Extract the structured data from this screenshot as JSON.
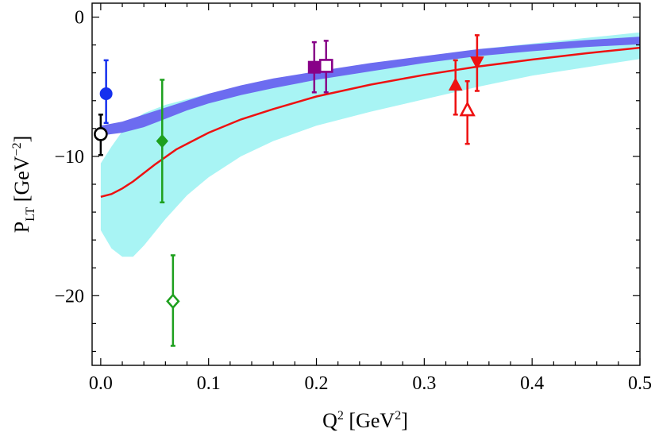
{
  "chart_data": {
    "type": "scatter",
    "title": "",
    "xlabel": {
      "main": "Q",
      "sup": "2",
      "unit_open": " [GeV",
      "unit_sup": "2",
      "unit_close": "]"
    },
    "ylabel": {
      "main": "P",
      "sub": "LT",
      "unit_open": " [GeV",
      "unit_sup": "−2",
      "unit_close": "]"
    },
    "xlim": [
      -0.008,
      0.5
    ],
    "ylim": [
      -25,
      1
    ],
    "x_ticks": [
      {
        "value": 0.0,
        "label": "0.0"
      },
      {
        "value": 0.1,
        "label": "0.1"
      },
      {
        "value": 0.2,
        "label": "0.2"
      },
      {
        "value": 0.3,
        "label": "0.3"
      },
      {
        "value": 0.4,
        "label": "0.4"
      },
      {
        "value": 0.5,
        "label": "0.5"
      }
    ],
    "y_ticks": [
      {
        "value": 0,
        "label": "0"
      },
      {
        "value": -10,
        "label": "−10"
      },
      {
        "value": -20,
        "label": "−20"
      }
    ],
    "bands": [
      {
        "name": "light-band",
        "color": "#a8f4f4",
        "x": [
          0.0,
          0.01,
          0.02,
          0.03,
          0.04,
          0.06,
          0.08,
          0.1,
          0.13,
          0.16,
          0.2,
          0.25,
          0.3,
          0.35,
          0.4,
          0.45,
          0.5
        ],
        "upper": [
          -10.5,
          -9.3,
          -8.2,
          -7.4,
          -6.9,
          -6.3,
          -5.9,
          -5.5,
          -5.0,
          -4.6,
          -4.1,
          -3.5,
          -2.9,
          -2.3,
          -1.9,
          -1.5,
          -1.1
        ],
        "lower": [
          -15.3,
          -16.6,
          -17.2,
          -17.2,
          -16.4,
          -14.5,
          -12.8,
          -11.5,
          -10.0,
          -8.9,
          -7.8,
          -6.8,
          -5.9,
          -5.0,
          -4.2,
          -3.6,
          -3.0
        ]
      },
      {
        "name": "purple-band",
        "color": "#6c6cf0",
        "x": [
          0.0,
          0.02,
          0.04,
          0.06,
          0.08,
          0.1,
          0.13,
          0.16,
          0.2,
          0.25,
          0.3,
          0.35,
          0.4,
          0.45,
          0.5
        ],
        "upper": [
          -7.8,
          -7.5,
          -7.0,
          -6.5,
          -6.0,
          -5.5,
          -4.9,
          -4.4,
          -3.9,
          -3.3,
          -2.8,
          -2.3,
          -1.95,
          -1.65,
          -1.4
        ],
        "lower": [
          -8.5,
          -8.3,
          -7.9,
          -7.3,
          -6.7,
          -6.2,
          -5.6,
          -5.1,
          -4.5,
          -3.9,
          -3.3,
          -2.8,
          -2.45,
          -2.15,
          -1.95
        ]
      }
    ],
    "series": [
      {
        "name": "red-curve",
        "type": "line",
        "color": "#ee1111",
        "x": [
          0.0,
          0.01,
          0.02,
          0.03,
          0.05,
          0.07,
          0.1,
          0.13,
          0.16,
          0.2,
          0.25,
          0.3,
          0.35,
          0.4,
          0.45,
          0.5
        ],
        "y": [
          -12.9,
          -12.7,
          -12.3,
          -11.8,
          -10.6,
          -9.5,
          -8.3,
          -7.35,
          -6.6,
          -5.7,
          -4.85,
          -4.15,
          -3.55,
          -3.05,
          -2.6,
          -2.2
        ]
      }
    ],
    "points": [
      {
        "name": "blue-filled-circle",
        "x": 0.005,
        "y": -5.5,
        "err_lo": -7.6,
        "err_hi": -3.1,
        "shape": "circle",
        "filled": true,
        "color": "#1530ee"
      },
      {
        "name": "black-open-circle",
        "x": 0.0,
        "y": -8.4,
        "err_lo": -9.9,
        "err_hi": -7.0,
        "shape": "circle",
        "filled": false,
        "color": "#000000"
      },
      {
        "name": "green-filled-diamond",
        "x": 0.057,
        "y": -8.9,
        "err_lo": -13.3,
        "err_hi": -4.5,
        "shape": "diamond",
        "filled": true,
        "color": "#1ea01e"
      },
      {
        "name": "green-open-diamond",
        "x": 0.067,
        "y": -20.4,
        "err_lo": -23.6,
        "err_hi": -17.1,
        "shape": "diamond",
        "filled": false,
        "color": "#1ea01e"
      },
      {
        "name": "purple-filled-square",
        "x": 0.198,
        "y": -3.6,
        "err_lo": -5.4,
        "err_hi": -1.8,
        "shape": "square",
        "filled": true,
        "color": "#880088"
      },
      {
        "name": "purple-open-square",
        "x": 0.209,
        "y": -3.5,
        "err_lo": -5.4,
        "err_hi": -1.7,
        "shape": "square",
        "filled": false,
        "color": "#880088"
      },
      {
        "name": "red-filled-up-triangle",
        "x": 0.329,
        "y": -4.9,
        "err_lo": -7.0,
        "err_hi": -3.1,
        "shape": "triangle-up",
        "filled": true,
        "color": "#ee1111"
      },
      {
        "name": "red-open-up-triangle",
        "x": 0.34,
        "y": -6.7,
        "err_lo": -9.1,
        "err_hi": -4.6,
        "shape": "triangle-up",
        "filled": false,
        "color": "#ee1111"
      },
      {
        "name": "red-filled-down-triangle",
        "x": 0.349,
        "y": -3.2,
        "err_lo": -5.3,
        "err_hi": -1.3,
        "shape": "triangle-down",
        "filled": true,
        "color": "#ee1111"
      }
    ]
  }
}
